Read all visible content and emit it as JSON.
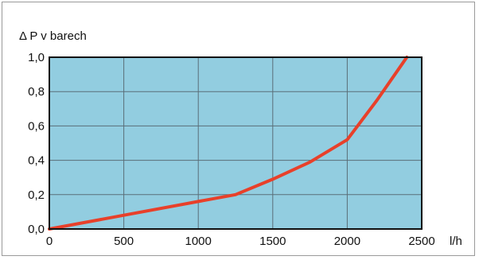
{
  "chart_data": {
    "type": "line",
    "title": "",
    "ylabel": "Δ P v barech",
    "xlabel": "l/h",
    "xlim": [
      0,
      2500
    ],
    "ylim": [
      0.0,
      1.0
    ],
    "x_ticks": [
      0,
      500,
      1000,
      1500,
      2000,
      2500
    ],
    "x_tick_labels": [
      "0",
      "500",
      "1000",
      "1500",
      "2000",
      "2500"
    ],
    "y_ticks": [
      0.0,
      0.2,
      0.4,
      0.6,
      0.8,
      1.0
    ],
    "y_tick_labels": [
      "0,0",
      "0,2",
      "0,4",
      "0,6",
      "0,8",
      "1,0"
    ],
    "grid": true,
    "legend": "none",
    "colors": {
      "plot_background": "#92cde0",
      "line": "#e8402a",
      "grid": "#5a6e78",
      "axis": "#111111"
    },
    "series": [
      {
        "x": [
          0,
          500,
          1000,
          1250,
          1500,
          1750,
          2000,
          2200,
          2400
        ],
        "y": [
          0.0,
          0.08,
          0.16,
          0.2,
          0.29,
          0.39,
          0.52,
          0.75,
          1.0
        ]
      }
    ]
  }
}
